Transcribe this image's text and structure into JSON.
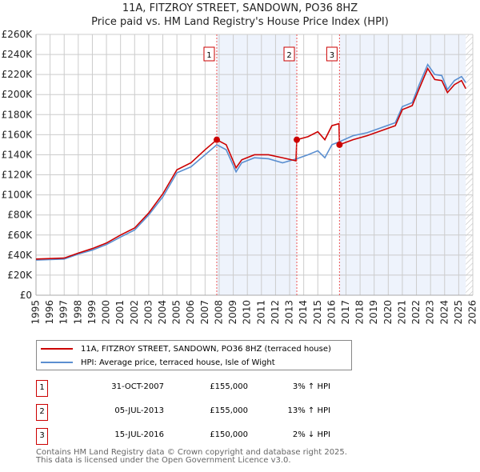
{
  "chart_data": {
    "type": "line",
    "title": "11A, FITZROY STREET, SANDOWN, PO36 8HZ",
    "subtitle": "Price paid vs. HM Land Registry's House Price Index (HPI)",
    "xlim": [
      1995,
      2026
    ],
    "ylim": [
      0,
      260000
    ],
    "x_ticks": [
      "1995",
      "1996",
      "1997",
      "1998",
      "1999",
      "2000",
      "2001",
      "2002",
      "2003",
      "2004",
      "2005",
      "2006",
      "2007",
      "2008",
      "2009",
      "2010",
      "2011",
      "2012",
      "2013",
      "2014",
      "2015",
      "2016",
      "2017",
      "2018",
      "2019",
      "2020",
      "2021",
      "2022",
      "2023",
      "2024",
      "2025",
      "2026"
    ],
    "y_ticks": [
      {
        "v": 0,
        "l": "£0"
      },
      {
        "v": 20000,
        "l": "£20K"
      },
      {
        "v": 40000,
        "l": "£40K"
      },
      {
        "v": 60000,
        "l": "£60K"
      },
      {
        "v": 80000,
        "l": "£80K"
      },
      {
        "v": 100000,
        "l": "£100K"
      },
      {
        "v": 120000,
        "l": "£120K"
      },
      {
        "v": 140000,
        "l": "£140K"
      },
      {
        "v": 160000,
        "l": "£160K"
      },
      {
        "v": 180000,
        "l": "£180K"
      },
      {
        "v": 200000,
        "l": "£200K"
      },
      {
        "v": 220000,
        "l": "£220K"
      },
      {
        "v": 240000,
        "l": "£240K"
      },
      {
        "v": 260000,
        "l": "£260K"
      }
    ],
    "grid": true,
    "series": [
      {
        "name": "11A, FITZROY STREET, SANDOWN, PO36 8HZ (terraced house)",
        "color": "#cc0000",
        "x": [
          1995,
          1996,
          1997,
          1998,
          1999,
          2000,
          2001,
          2002,
          2003,
          2004,
          2005,
          2006,
          2007,
          2007.83,
          2008.5,
          2009.2,
          2009.6,
          2010.5,
          2011.5,
          2012.5,
          2013.45,
          2013.51,
          2014.3,
          2015,
          2015.5,
          2016,
          2016.5,
          2016.54,
          2017.5,
          2018.5,
          2019.5,
          2020.5,
          2021,
          2021.7,
          2022.2,
          2022.8,
          2023.3,
          2023.8,
          2024.2,
          2024.7,
          2025.2,
          2025.5
        ],
        "y": [
          36000,
          36500,
          37000,
          42000,
          46500,
          52000,
          60000,
          67000,
          82000,
          101000,
          125000,
          132000,
          145000,
          155000,
          150000,
          127000,
          135000,
          140000,
          140000,
          137000,
          134000,
          155000,
          158000,
          163000,
          155000,
          169000,
          171000,
          150000,
          155000,
          159000,
          164000,
          169000,
          185000,
          189000,
          206000,
          226000,
          215000,
          214000,
          202000,
          210000,
          214000,
          206000
        ]
      },
      {
        "name": "HPI: Average price, terraced house, Isle of Wight",
        "color": "#5b8fd0",
        "x": [
          1995,
          1996,
          1997,
          1998,
          1999,
          2000,
          2001,
          2002,
          2003,
          2004,
          2005,
          2006,
          2007,
          2007.83,
          2008.5,
          2009.2,
          2009.6,
          2010.5,
          2011.5,
          2012.5,
          2013.5,
          2014.3,
          2015,
          2015.5,
          2016,
          2016.54,
          2017.5,
          2018.5,
          2019.5,
          2020.5,
          2021,
          2021.7,
          2022.2,
          2022.8,
          2023.3,
          2023.8,
          2024.2,
          2024.7,
          2025.2,
          2025.5
        ],
        "y": [
          35000,
          35500,
          36000,
          41000,
          45000,
          50500,
          58000,
          65000,
          80000,
          98000,
          122000,
          128000,
          140000,
          150000,
          145000,
          123000,
          132000,
          137000,
          136000,
          132000,
          136000,
          140000,
          144000,
          137000,
          150000,
          153000,
          159000,
          162000,
          167000,
          172000,
          188000,
          192000,
          210000,
          230000,
          220000,
          219000,
          205000,
          214000,
          218000,
          212000
        ]
      }
    ],
    "sales": [
      {
        "id": "1",
        "x": 2007.83,
        "y": 155000,
        "date": "31-OCT-2007",
        "price": "£155,000",
        "hpi": "3% ↑ HPI"
      },
      {
        "id": "2",
        "x": 2013.51,
        "y": 155000,
        "date": "05-JUL-2013",
        "price": "£155,000",
        "hpi": "13% ↑ HPI"
      },
      {
        "id": "3",
        "x": 2016.54,
        "y": 150000,
        "date": "15-JUL-2016",
        "price": "£150,000",
        "hpi": "2% ↓ HPI"
      }
    ],
    "shaded": [
      [
        2007.83,
        2013.51
      ],
      [
        2016.54,
        2025.5
      ]
    ],
    "forecast_from": 2025.5
  },
  "legend": {
    "property": "11A, FITZROY STREET, SANDOWN, PO36 8HZ (terraced house)",
    "hpi": "HPI: Average price, terraced house, Isle of Wight"
  },
  "footer": {
    "line1": "Contains HM Land Registry data © Crown copyright and database right 2025.",
    "line2": "This data is licensed under the Open Government Licence v3.0."
  }
}
